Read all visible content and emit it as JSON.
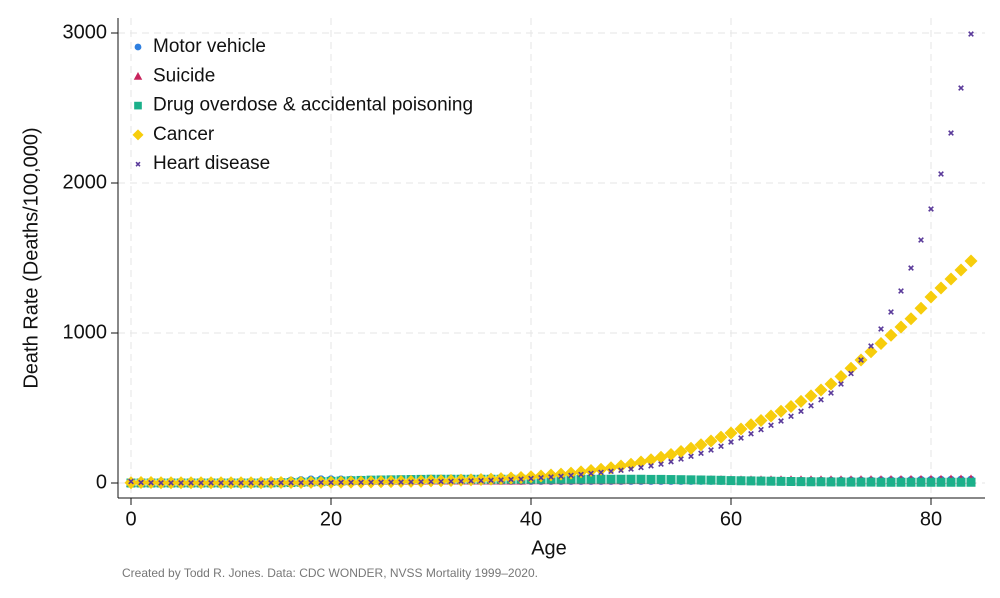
{
  "chart_data": {
    "type": "scatter",
    "xlabel": "Age",
    "ylabel": "Death Rate (Deaths/100,000)",
    "note": "Created by Todd R. Jones. Data: CDC WONDER, NVSS Mortality 1999–2020.",
    "x": [
      0,
      1,
      2,
      3,
      4,
      5,
      6,
      7,
      8,
      9,
      10,
      11,
      12,
      13,
      14,
      15,
      16,
      17,
      18,
      19,
      20,
      21,
      22,
      23,
      24,
      25,
      26,
      27,
      28,
      29,
      30,
      31,
      32,
      33,
      34,
      35,
      36,
      37,
      38,
      39,
      40,
      41,
      42,
      43,
      44,
      45,
      46,
      47,
      48,
      49,
      50,
      51,
      52,
      53,
      54,
      55,
      56,
      57,
      58,
      59,
      60,
      61,
      62,
      63,
      64,
      65,
      66,
      67,
      68,
      69,
      70,
      71,
      72,
      73,
      74,
      75,
      76,
      77,
      78,
      79,
      80,
      81,
      82,
      83,
      84
    ],
    "xlim": [
      -1.3,
      85.4
    ],
    "xticks": [
      0,
      20,
      40,
      60,
      80
    ],
    "ylim": [
      -100,
      3100
    ],
    "yticks": [
      0,
      1000,
      2000,
      3000
    ],
    "grid": true,
    "legend": "upper left",
    "series": [
      {
        "name": "Motor vehicle",
        "color": "#2e7fe0",
        "marker": "circle",
        "values": [
          2,
          3,
          3,
          3,
          3,
          3,
          3,
          3,
          3,
          3,
          3,
          3,
          4,
          5,
          6,
          10,
          16,
          19,
          23,
          24,
          24,
          23,
          22,
          21,
          20,
          19,
          18,
          17,
          16,
          16,
          15,
          15,
          15,
          14,
          14,
          14,
          14,
          14,
          14,
          14,
          14,
          14,
          14,
          14,
          14,
          14,
          14,
          14,
          14,
          14,
          14,
          14,
          14,
          14,
          14,
          14,
          14,
          14,
          14,
          14,
          15,
          15,
          15,
          15,
          15,
          15,
          15,
          15,
          15,
          15,
          16,
          16,
          17,
          17,
          17,
          18,
          18,
          19,
          19,
          20,
          20,
          21,
          21,
          22,
          22
        ]
      },
      {
        "name": "Suicide",
        "color": "#c8245c",
        "marker": "triangle",
        "values": [
          0,
          0,
          0,
          0,
          0,
          0,
          0,
          0,
          0,
          0,
          1,
          1,
          2,
          3,
          4,
          6,
          8,
          10,
          12,
          14,
          15,
          16,
          16,
          16,
          16,
          16,
          16,
          16,
          16,
          16,
          17,
          17,
          17,
          17,
          17,
          17,
          17,
          17,
          17,
          17,
          18,
          18,
          18,
          18,
          18,
          18,
          18,
          18,
          18,
          18,
          19,
          19,
          19,
          19,
          19,
          19,
          19,
          19,
          19,
          19,
          18,
          18,
          18,
          18,
          18,
          18,
          18,
          18,
          18,
          18,
          18,
          18,
          18,
          19,
          19,
          19,
          20,
          20,
          21,
          21,
          22,
          22,
          23,
          23,
          24
        ]
      },
      {
        "name": "Drug overdose & accidental poisoning",
        "color": "#1bb08a",
        "marker": "square",
        "values": [
          0,
          0,
          0,
          0,
          0,
          0,
          0,
          0,
          0,
          0,
          0,
          0,
          0,
          0,
          1,
          2,
          3,
          5,
          7,
          9,
          11,
          13,
          15,
          17,
          19,
          20,
          21,
          22,
          23,
          24,
          25,
          25,
          25,
          25,
          25,
          25,
          25,
          25,
          25,
          25,
          25,
          25,
          25,
          25,
          25,
          25,
          25,
          25,
          25,
          25,
          25,
          25,
          24,
          24,
          23,
          22,
          21,
          20,
          19,
          18,
          16,
          15,
          14,
          13,
          12,
          11,
          10,
          9,
          8,
          8,
          7,
          7,
          6,
          6,
          6,
          5,
          5,
          5,
          5,
          5,
          5,
          5,
          5,
          5,
          5
        ]
      },
      {
        "name": "Cancer",
        "color": "#f7cd0c",
        "marker": "diamond",
        "values": [
          2,
          3,
          3,
          2,
          2,
          2,
          2,
          2,
          2,
          2,
          2,
          2,
          2,
          2,
          3,
          3,
          3,
          3,
          4,
          4,
          5,
          5,
          6,
          6,
          7,
          8,
          9,
          10,
          11,
          12,
          14,
          15,
          17,
          19,
          21,
          23,
          26,
          29,
          33,
          37,
          42,
          47,
          53,
          59,
          66,
          74,
          83,
          92,
          102,
          113,
          125,
          140,
          155,
          172,
          190,
          210,
          232,
          255,
          280,
          306,
          333,
          360,
          388,
          417,
          447,
          478,
          510,
          544,
          581,
          620,
          660,
          710,
          765,
          820,
          875,
          930,
          985,
          1040,
          1095,
          1165,
          1240,
          1300,
          1360,
          1420,
          1480
        ]
      },
      {
        "name": "Heart disease",
        "color": "#5a3a9a",
        "marker": "x",
        "values": [
          10,
          3,
          2,
          1,
          1,
          1,
          1,
          1,
          1,
          1,
          1,
          1,
          1,
          1,
          1,
          2,
          2,
          2,
          3,
          3,
          3,
          4,
          4,
          4,
          5,
          5,
          6,
          6,
          7,
          8,
          9,
          10,
          11,
          12,
          14,
          16,
          18,
          20,
          23,
          26,
          30,
          35,
          40,
          45,
          51,
          57,
          64,
          71,
          78,
          85,
          93,
          103,
          114,
          126,
          142,
          160,
          178,
          198,
          220,
          245,
          273,
          300,
          328,
          356,
          385,
          413,
          445,
          478,
          515,
          555,
          600,
          660,
          730,
          820,
          913,
          1027,
          1140,
          1280,
          1433,
          1620,
          1827,
          2060,
          2333,
          2633,
          2993
        ]
      }
    ]
  }
}
